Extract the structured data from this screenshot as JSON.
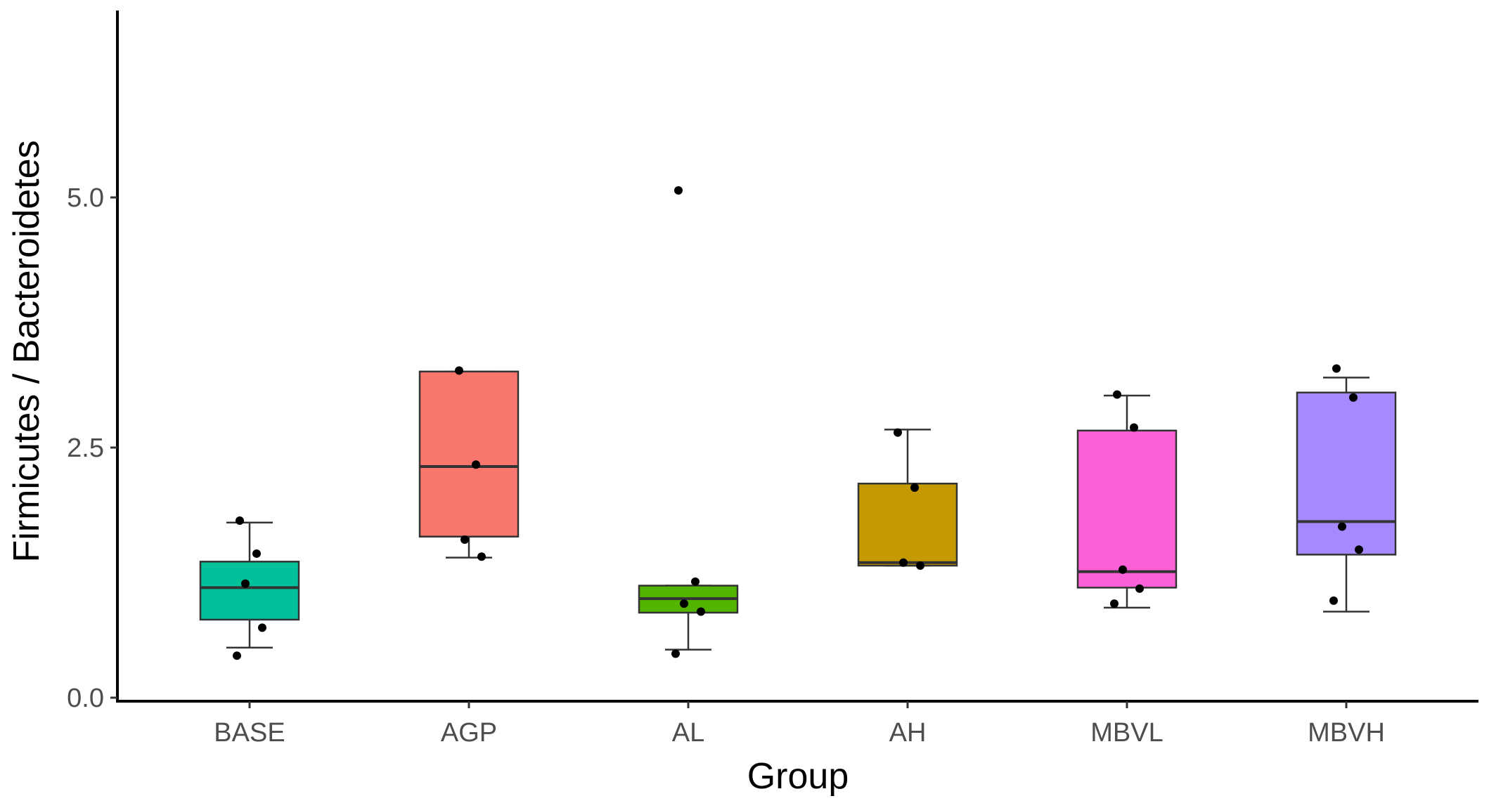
{
  "chart_data": {
    "type": "box",
    "xlabel": "Group",
    "ylabel": "Firmicutes / Bacteroidetes",
    "ylim": [
      -0.1,
      6.9
    ],
    "yticks": [
      0.0,
      2.5,
      5.0
    ],
    "ytick_labels": [
      "0.0",
      "2.5",
      "5.0"
    ],
    "grid": false,
    "categories": [
      "BASE",
      "AGP",
      "AL",
      "AH",
      "MBVL",
      "MBVH"
    ],
    "groups": [
      {
        "name": "BASE",
        "color": "#00C19A",
        "q1": 0.78,
        "median": 1.1,
        "q3": 1.36,
        "whisker_low": 0.5,
        "whisker_high": 1.75,
        "points": [
          1.77,
          1.44,
          1.14,
          0.7,
          0.42
        ]
      },
      {
        "name": "AGP",
        "color": "#F8766D",
        "q1": 1.61,
        "median": 2.31,
        "q3": 3.26,
        "whisker_low": 1.4,
        "whisker_high": 3.26,
        "points": [
          3.27,
          2.33,
          1.58,
          1.41
        ]
      },
      {
        "name": "AL",
        "color": "#53B400",
        "q1": 0.85,
        "median": 0.99,
        "q3": 1.12,
        "whisker_low": 0.48,
        "whisker_high": 1.12,
        "points": [
          5.07,
          1.16,
          0.94,
          0.86,
          0.44
        ]
      },
      {
        "name": "AH",
        "color": "#C49A00",
        "q1": 1.32,
        "median": 1.35,
        "q3": 2.14,
        "whisker_low": 1.32,
        "whisker_high": 2.68,
        "points": [
          2.65,
          2.1,
          1.35,
          1.32
        ]
      },
      {
        "name": "MBVL",
        "color": "#FB61D7",
        "q1": 1.1,
        "median": 1.26,
        "q3": 2.67,
        "whisker_low": 0.9,
        "whisker_high": 3.02,
        "points": [
          3.03,
          2.7,
          1.28,
          1.09,
          0.94
        ]
      },
      {
        "name": "MBVH",
        "color": "#A58AFF",
        "q1": 1.43,
        "median": 1.76,
        "q3": 3.05,
        "whisker_low": 0.86,
        "whisker_high": 3.2,
        "points": [
          3.29,
          3.0,
          1.71,
          1.48,
          0.97
        ]
      }
    ]
  }
}
